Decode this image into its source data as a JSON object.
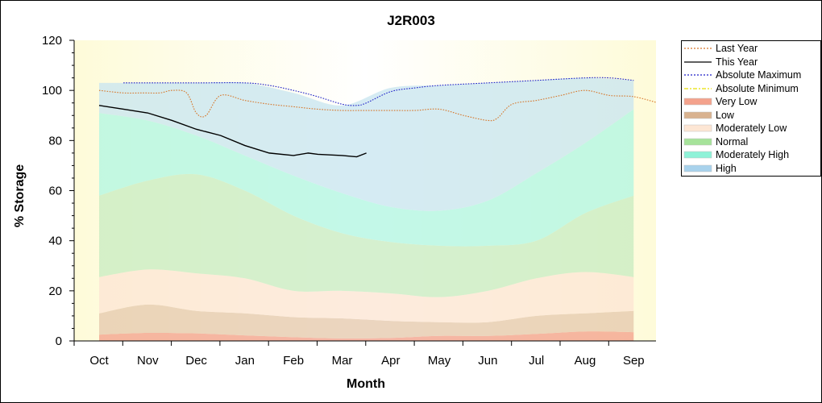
{
  "chart_data": {
    "type": "area",
    "title": "J2R003",
    "xlabel": "Month",
    "ylabel": "% Storage",
    "ylim": [
      0,
      120
    ],
    "yticks": [
      0,
      20,
      40,
      60,
      80,
      100,
      120
    ],
    "categories": [
      "Oct",
      "Nov",
      "Dec",
      "Jan",
      "Feb",
      "Mar",
      "Apr",
      "May",
      "Jun",
      "Jul",
      "Aug",
      "Sep"
    ],
    "grid": false,
    "legend_position": "right",
    "bands": [
      {
        "name": "Very Low",
        "color": "#f4a28c",
        "lower": [
          0,
          0,
          0,
          0,
          0,
          0,
          0,
          0,
          0,
          0,
          0,
          0
        ],
        "upper": [
          2.5,
          3.2,
          3.0,
          2.2,
          1.5,
          1.0,
          1.2,
          2.0,
          2.0,
          2.8,
          3.8,
          3.5
        ]
      },
      {
        "name": "Low",
        "color": "#e6c9ad",
        "lower": [
          2.5,
          3.2,
          3.0,
          2.2,
          1.5,
          1.0,
          1.2,
          2.0,
          2.0,
          2.8,
          3.8,
          3.5
        ],
        "upper": [
          11,
          14.5,
          12,
          11,
          9.5,
          9,
          8,
          7.5,
          7.5,
          10,
          11,
          12
        ]
      },
      {
        "name": "Moderately Low",
        "color": "#fde6d4",
        "lower": [
          11,
          14.5,
          12,
          11,
          9.5,
          9,
          8,
          7.5,
          7.5,
          10,
          11,
          12
        ],
        "upper": [
          25.5,
          28.5,
          27,
          25,
          20,
          20,
          19,
          17.5,
          20,
          25,
          27.5,
          25.5
        ]
      },
      {
        "name": "Normal",
        "color": "#c9ecc1",
        "lower": [
          25.5,
          28.5,
          27,
          25,
          20,
          20,
          19,
          17.5,
          20,
          25,
          27.5,
          25.5
        ],
        "upper": [
          58,
          64,
          66.5,
          60,
          50,
          43,
          39.5,
          38,
          38,
          40,
          51,
          58
        ]
      },
      {
        "name": "Moderately High",
        "color": "#b2f6e2",
        "lower": [
          58,
          64,
          66.5,
          60,
          50,
          43,
          39.5,
          38,
          38,
          40,
          51,
          58
        ],
        "upper": [
          91,
          88,
          82,
          74,
          66,
          59,
          53.5,
          52,
          56,
          67,
          79,
          92.5
        ]
      },
      {
        "name": "High",
        "color": "#c9e6ef",
        "lower": [
          91,
          88,
          82,
          74,
          66,
          59,
          53.5,
          52,
          56,
          67,
          79,
          92.5
        ],
        "upper": [
          103,
          103,
          103,
          103,
          99,
          94,
          101,
          102,
          103,
          104,
          105,
          104
        ]
      }
    ],
    "series": [
      {
        "name": "Last Year",
        "color": "#d6762a",
        "style": "dotted",
        "x": [
          0,
          0.5,
          0.9,
          1.25,
          1.5,
          1.8,
          2.0,
          2.2,
          2.5,
          3.0,
          3.5,
          4.0,
          4.5,
          5.0,
          5.5,
          6.0,
          6.5,
          7.0,
          7.5,
          8.0,
          8.2,
          8.5,
          9.0,
          9.5,
          10.0,
          10.5,
          11.0,
          11.5
        ],
        "y": [
          100,
          99,
          99,
          99,
          100,
          99,
          91,
          90,
          98,
          96,
          94.5,
          93.5,
          92.5,
          92,
          92,
          92,
          92,
          92.5,
          90,
          88,
          89,
          94.5,
          96,
          98,
          100,
          98,
          97.5,
          95
        ]
      },
      {
        "name": "This Year",
        "color": "#000000",
        "style": "solid",
        "x": [
          0,
          0.5,
          1.0,
          1.5,
          2.0,
          2.5,
          3.0,
          3.5,
          4.0,
          4.3,
          4.5,
          5.0,
          5.3,
          5.5
        ],
        "y": [
          94,
          92.5,
          91,
          88,
          84.5,
          82,
          78,
          75,
          74,
          75,
          74.5,
          74,
          73.5,
          75
        ]
      },
      {
        "name": "Absolute Maximum",
        "color": "#1d1fc7",
        "style": "dotted",
        "x": [
          0.5,
          1,
          2,
          3,
          3.5,
          4,
          4.5,
          5,
          5.3,
          5.5,
          6,
          6.5,
          7,
          8,
          9,
          10,
          10.5,
          11
        ],
        "y": [
          103,
          103,
          103,
          103,
          102,
          100,
          97.5,
          94.5,
          94,
          95,
          99.5,
          101,
          102,
          103,
          104,
          105,
          105,
          104
        ]
      },
      {
        "name": "Absolute Minimum",
        "color": "#e8e000",
        "style": "dashdot",
        "x": [],
        "y": []
      }
    ]
  },
  "legend": [
    {
      "label": "Last Year",
      "kind": "line",
      "color": "#d6762a",
      "dash": "2,2"
    },
    {
      "label": "This Year",
      "kind": "line",
      "color": "#000000",
      "dash": ""
    },
    {
      "label": "Absolute Maximum",
      "kind": "line",
      "color": "#1d1fc7",
      "dash": "2,2"
    },
    {
      "label": "Absolute Minimum",
      "kind": "line",
      "color": "#e8e000",
      "dash": "5,2,2,2"
    },
    {
      "label": "Very Low",
      "kind": "fill",
      "color": "#f4a28c"
    },
    {
      "label": "Low",
      "kind": "fill",
      "color": "#d9b28f"
    },
    {
      "label": "Moderately Low",
      "kind": "fill",
      "color": "#fde6d4"
    },
    {
      "label": "Normal",
      "kind": "fill",
      "color": "#a6e39a"
    },
    {
      "label": "Moderately High",
      "kind": "fill",
      "color": "#8ff2d8"
    },
    {
      "label": "High",
      "kind": "fill",
      "color": "#a8d2ec"
    }
  ],
  "colors": {
    "plot_background": "#fefde9"
  }
}
